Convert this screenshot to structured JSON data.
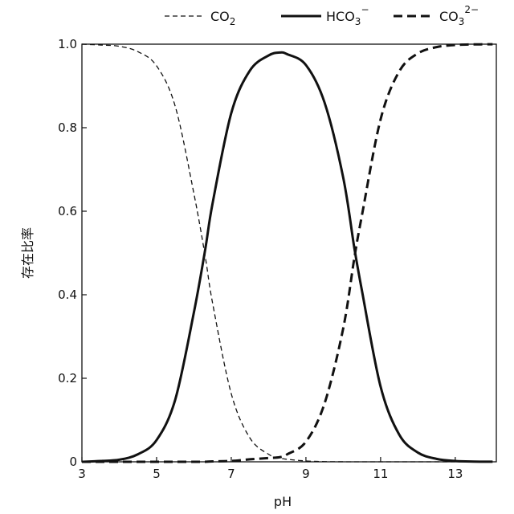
{
  "chart_data": {
    "type": "line",
    "xlabel": "pH",
    "ylabel": "存在比率",
    "xlim": [
      3,
      14.1
    ],
    "ylim": [
      0,
      1
    ],
    "x_ticks": [
      "3",
      "5",
      "7",
      "9",
      "11",
      "13"
    ],
    "y_ticks": [
      "0",
      "0.2",
      "0.4",
      "0.6",
      "0.8",
      "1.0"
    ],
    "x": [
      3.0,
      3.5,
      4.0,
      4.5,
      5.0,
      5.5,
      6.0,
      6.3,
      6.5,
      7.0,
      7.5,
      8.0,
      8.3,
      8.5,
      9.0,
      9.5,
      10.0,
      10.3,
      10.5,
      11.0,
      11.5,
      12.0,
      12.5,
      13.0,
      13.5,
      14.0
    ],
    "series": [
      {
        "name": "CO2",
        "style": "dashed-thin",
        "values": [
          1.0,
          0.998,
          0.995,
          0.982,
          0.948,
          0.851,
          0.642,
          0.493,
          0.38,
          0.163,
          0.057,
          0.018,
          0.009,
          0.006,
          0.002,
          0.0005,
          0.0001,
          0.0,
          0.0,
          0.0,
          0.0,
          0.0,
          0.0,
          0.0,
          0.0,
          0.0
        ]
      },
      {
        "name": "HCO3⁻",
        "style": "solid",
        "values": [
          0.0,
          0.002,
          0.005,
          0.018,
          0.052,
          0.149,
          0.358,
          0.507,
          0.619,
          0.835,
          0.937,
          0.973,
          0.98,
          0.976,
          0.95,
          0.86,
          0.68,
          0.51,
          0.41,
          0.18,
          0.065,
          0.022,
          0.007,
          0.002,
          0.0006,
          0.0002
        ]
      },
      {
        "name": "CO3²⁻",
        "style": "dashed-thick",
        "values": [
          0.0,
          0.0,
          0.0,
          0.0,
          0.0,
          0.0,
          0.0,
          0.0,
          0.001,
          0.002,
          0.006,
          0.009,
          0.011,
          0.018,
          0.048,
          0.14,
          0.32,
          0.49,
          0.59,
          0.82,
          0.935,
          0.978,
          0.993,
          0.998,
          0.9994,
          0.9998
        ]
      }
    ],
    "legend_placement": "top",
    "grid": false
  }
}
